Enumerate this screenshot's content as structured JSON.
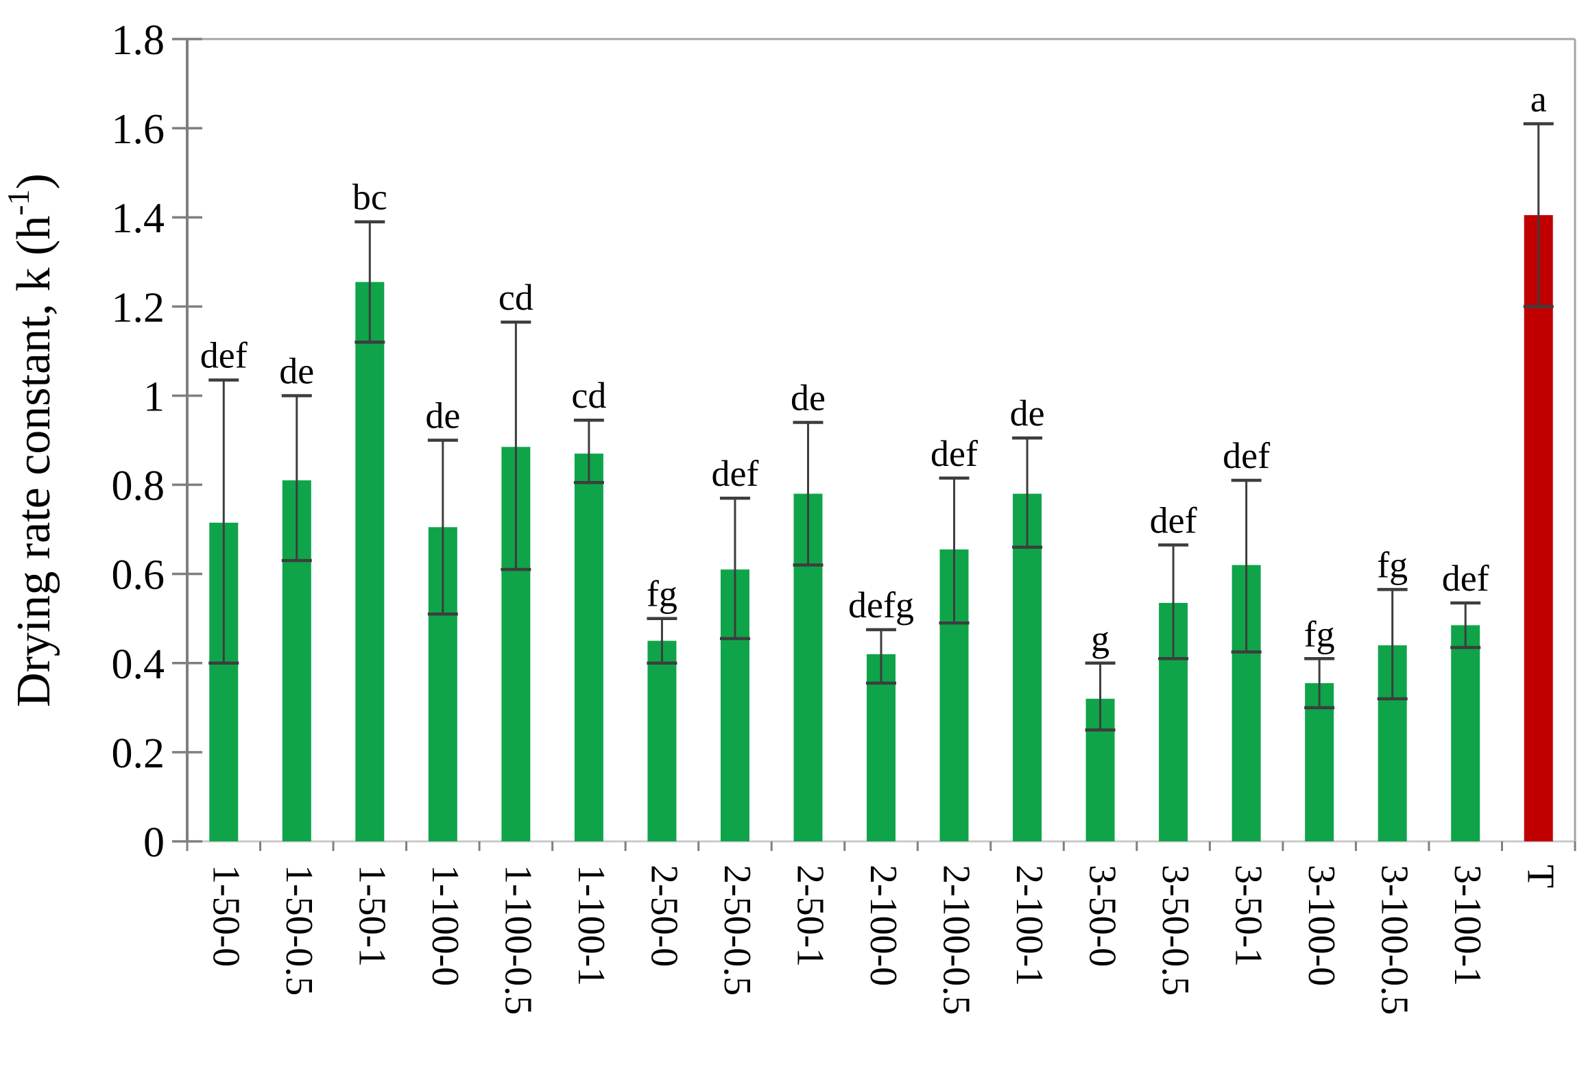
{
  "chart_data": {
    "type": "bar",
    "title": "",
    "xlabel": "",
    "ylabel_prefix": "Drying rate constant, k (h",
    "ylabel_sup": "-1",
    "ylabel_suffix": ")",
    "ylabel_full": "Drying rate constant, k (h⁻¹)",
    "ylim": [
      0,
      1.8
    ],
    "ytick_labels": [
      "0",
      "0.2",
      "0.4",
      "0.6",
      "0.8",
      "1",
      "1.2",
      "1.4",
      "1.6",
      "1.8"
    ],
    "ytick_values": [
      0,
      0.2,
      0.4,
      0.6,
      0.8,
      1.0,
      1.2,
      1.4,
      1.6,
      1.8
    ],
    "grid": "off",
    "legend": "none",
    "categories": [
      "1-50-0",
      "1-50-0.5",
      "1-50-1",
      "1-100-0",
      "1-100-0.5",
      "1-100-1",
      "2-50-0",
      "2-50-0.5",
      "2-50-1",
      "2-100-0",
      "2-100-0.5",
      "2-100-1",
      "3-50-0",
      "3-50-0.5",
      "3-50-1",
      "3-100-0",
      "3-100-0.5",
      "3-100-1",
      "T"
    ],
    "values": [
      0.715,
      0.81,
      1.255,
      0.705,
      0.885,
      0.87,
      0.45,
      0.61,
      0.78,
      0.42,
      0.655,
      0.78,
      0.32,
      0.535,
      0.62,
      0.355,
      0.44,
      0.485,
      1.405
    ],
    "error_high": [
      1.035,
      1.0,
      1.39,
      0.9,
      1.165,
      0.945,
      0.5,
      0.77,
      0.94,
      0.475,
      0.815,
      0.905,
      0.4,
      0.665,
      0.81,
      0.41,
      0.565,
      0.535,
      1.61
    ],
    "error_low": [
      0.4,
      0.63,
      1.12,
      0.51,
      0.61,
      0.805,
      0.4,
      0.455,
      0.62,
      0.355,
      0.49,
      0.66,
      0.25,
      0.41,
      0.425,
      0.3,
      0.32,
      0.435,
      1.2
    ],
    "sig_letters": [
      "def",
      "de",
      "bc",
      "de",
      "cd",
      "cd",
      "fg",
      "def",
      "de",
      "defg",
      "def",
      "de",
      "g",
      "def",
      "def",
      "fg",
      "fg",
      "def",
      "a"
    ],
    "highlight_index": 18,
    "colors": {
      "bar_green": "#0FA44A",
      "bar_red": "#C00000",
      "error_bar": "#3D3D3D",
      "axis_gray": "#7F7F7F",
      "border_gray": "#A6A6A6",
      "baseline_gray": "#C9C9C9",
      "text_black": "#000000"
    }
  }
}
